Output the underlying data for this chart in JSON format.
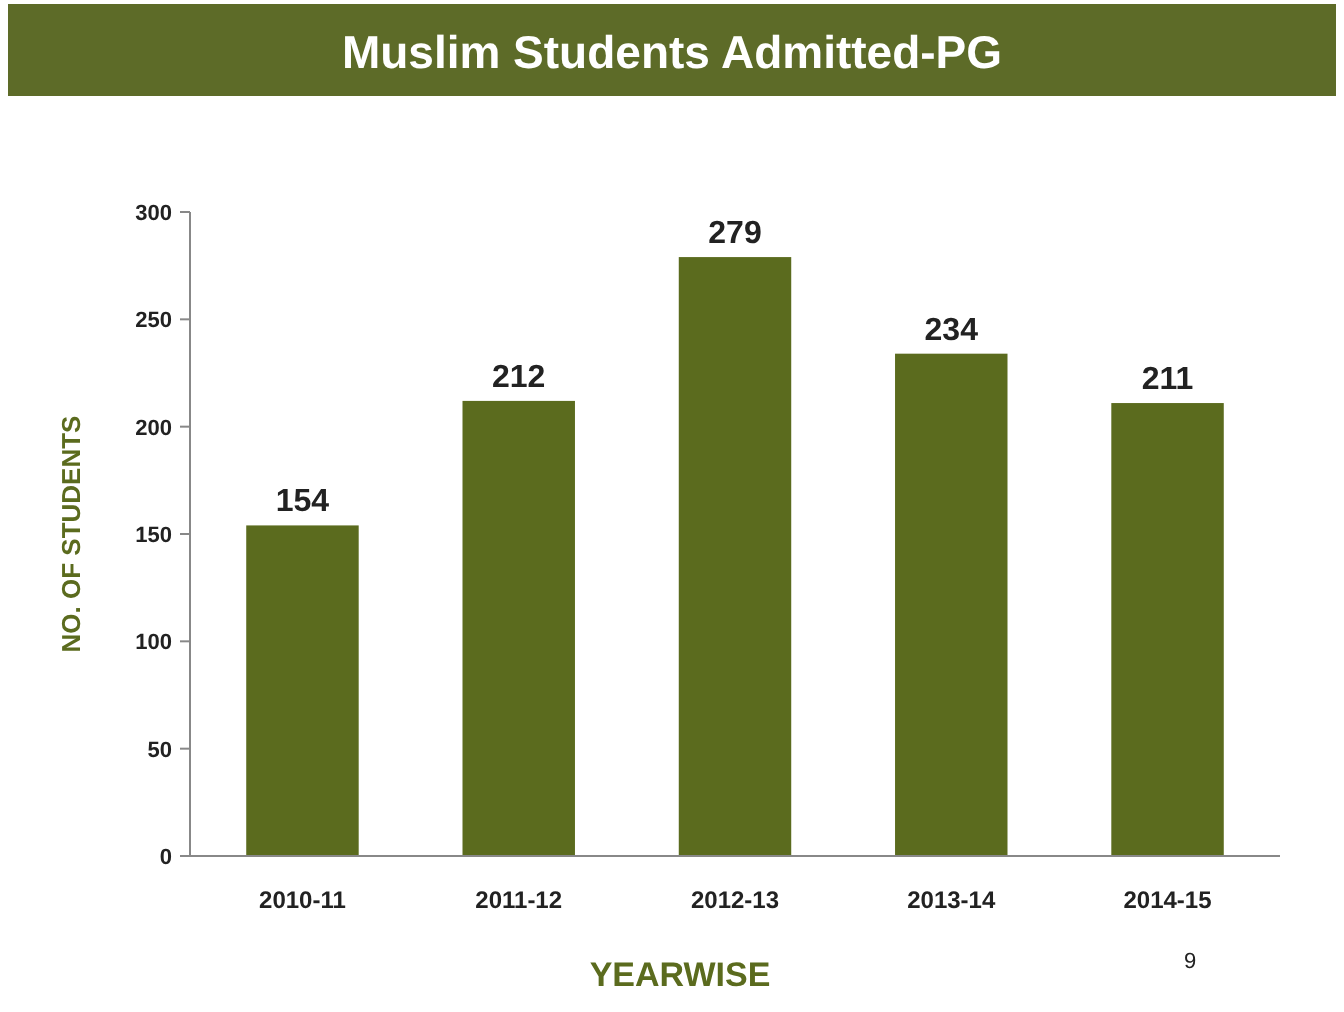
{
  "chart_data": {
    "type": "bar",
    "title": "Muslim Students Admitted-PG",
    "xlabel": "YEARWISE",
    "ylabel": "NO. OF STUDENTS",
    "categories": [
      "2010-11",
      "2011-12",
      "2012-13",
      "2013-14",
      "2014-15"
    ],
    "values": [
      154,
      212,
      279,
      234,
      211
    ],
    "color": "#5b6b1e",
    "ylim": [
      0,
      300
    ],
    "yticks": [
      0,
      50,
      100,
      150,
      200,
      250,
      300
    ],
    "data_labels": true,
    "grid": false,
    "annotations": [
      "9"
    ]
  }
}
